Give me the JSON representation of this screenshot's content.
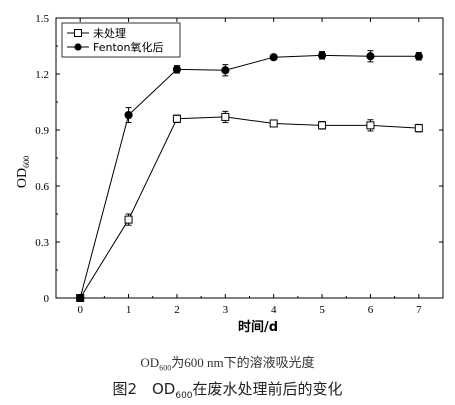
{
  "chart_data": {
    "type": "line",
    "x": [
      0,
      1,
      2,
      3,
      4,
      5,
      6,
      7
    ],
    "series": [
      {
        "name": "未处理",
        "marker": "open-square",
        "values": [
          0.0,
          0.42,
          0.96,
          0.97,
          0.935,
          0.925,
          0.925,
          0.91
        ],
        "errors": [
          0.01,
          0.03,
          0.02,
          0.03,
          0.01,
          0.02,
          0.03,
          0.02
        ]
      },
      {
        "name": "Fenton氧化后",
        "marker": "filled-circle",
        "values": [
          0.0,
          0.98,
          1.225,
          1.22,
          1.29,
          1.3,
          1.295,
          1.295
        ],
        "errors": [
          0.01,
          0.04,
          0.02,
          0.03,
          0.01,
          0.02,
          0.03,
          0.02
        ]
      }
    ],
    "xlabel": "时间/d",
    "ylabel": {
      "main": "OD",
      "sub": "600"
    },
    "xlim": [
      -0.5,
      7.5
    ],
    "ylim": [
      0,
      1.5
    ],
    "xticks": [
      "0",
      "1",
      "2",
      "3",
      "4",
      "5",
      "6",
      "7"
    ],
    "yticks": [
      "0",
      "0.3",
      "0.6",
      "0.9",
      "1.2",
      "1.5"
    ],
    "legend_position": "top-left",
    "grid": false
  },
  "captions": {
    "sub": {
      "pre": "OD",
      "sub": "600",
      "post": "为600 nm下的溶液吸光度"
    },
    "main": {
      "pre": "图2　OD",
      "sub": "600",
      "post": "在废水处理前后的变化"
    }
  }
}
